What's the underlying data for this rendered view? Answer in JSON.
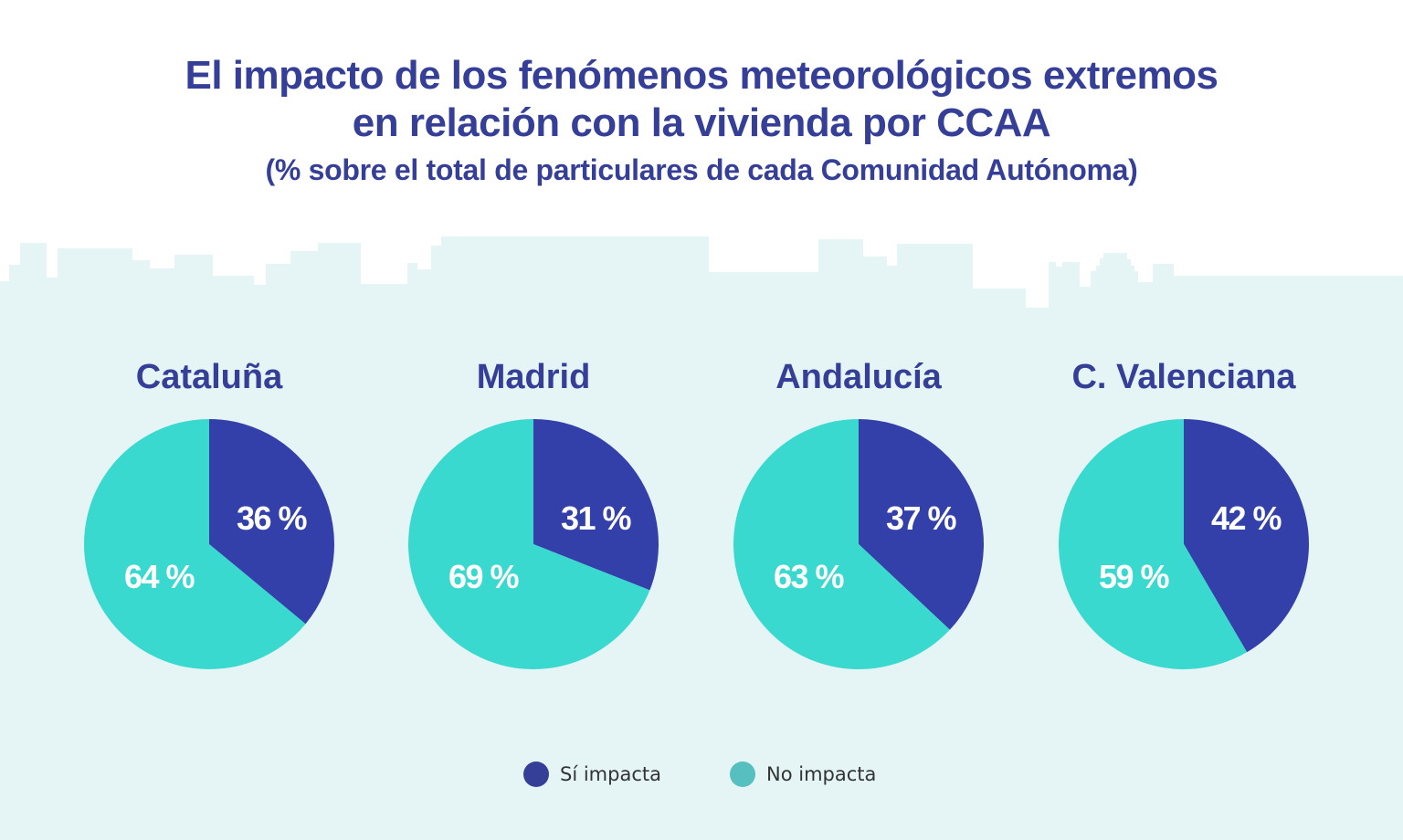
{
  "header": {
    "title_line1": "El impacto de los fenómenos meteorológicos extremos",
    "title_line2": "en relación con la vivienda por CCAA",
    "subtitle": "(% sobre el total de particulares de cada Comunidad Autónoma)"
  },
  "colors": {
    "title": "#353f98",
    "si_impacta": "#3340aa",
    "no_impacta": "#3ad9cf",
    "legend_no_impacta": "#56bfbf",
    "background_skyline": "#e5f4f5"
  },
  "legend": {
    "items": [
      {
        "label": "Sí impacta",
        "color": "#353f98"
      },
      {
        "label": "No impacta",
        "color": "#56bfbf"
      }
    ]
  },
  "chart_data": {
    "type": "pie",
    "title": "El impacto de los fenómenos meteorológicos extremos en relación con la vivienda por CCAA",
    "subtitle": "(% sobre el total de particulares de cada Comunidad Autónoma)",
    "series_names": [
      "Sí impacta",
      "No impacta"
    ],
    "legend_position": "bottom",
    "pies": [
      {
        "region": "Cataluña",
        "values": [
          36,
          64
        ],
        "labels": [
          "36 %",
          "64 %"
        ]
      },
      {
        "region": "Madrid",
        "values": [
          31,
          69
        ],
        "labels": [
          "31 %",
          "69 %"
        ]
      },
      {
        "region": "Andalucía",
        "values": [
          37,
          63
        ],
        "labels": [
          "37 %",
          "63 %"
        ]
      },
      {
        "region": "C. Valenciana",
        "values": [
          42,
          59
        ],
        "labels": [
          "42 %",
          "59 %"
        ]
      }
    ]
  }
}
